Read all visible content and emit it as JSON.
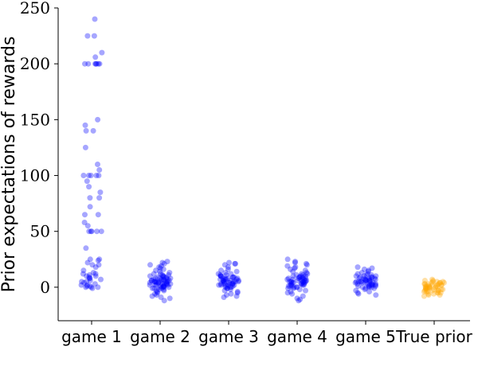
{
  "chart_data": {
    "type": "scatter",
    "subtype": "strip-plot",
    "title": "",
    "xlabel": "",
    "ylabel": "Prior expectations of rewards",
    "ylim": [
      -30,
      250
    ],
    "yticks": [
      0,
      50,
      100,
      150,
      200,
      250
    ],
    "grid": false,
    "legend": "none",
    "categories": [
      "game 1",
      "game 2",
      "game 3",
      "game 4",
      "game 5",
      "True prior"
    ],
    "series": [
      {
        "category": "game 1",
        "color": "#0000ff",
        "values": [
          240,
          225,
          225,
          210,
          206,
          200,
          200,
          200,
          200,
          200,
          200,
          200,
          150,
          145,
          140,
          140,
          125,
          110,
          105,
          100,
          100,
          100,
          100,
          100,
          95,
          90,
          85,
          80,
          80,
          72,
          65,
          65,
          58,
          55,
          50,
          50,
          50,
          50,
          50,
          35,
          25,
          25,
          24,
          22,
          20,
          20,
          18,
          15,
          13,
          12,
          12,
          11,
          10,
          10,
          9,
          8,
          8,
          7,
          6,
          5,
          5,
          4,
          3,
          2,
          2,
          1,
          1,
          0,
          0,
          0,
          -1
        ]
      },
      {
        "category": "game 2",
        "color": "#0000ff",
        "values": [
          23,
          22,
          21,
          20,
          19,
          18,
          17,
          16,
          15,
          14,
          13,
          12,
          12,
          11,
          11,
          10,
          10,
          10,
          9,
          9,
          9,
          8,
          8,
          8,
          8,
          7,
          7,
          7,
          7,
          6,
          6,
          6,
          6,
          6,
          5,
          5,
          5,
          5,
          5,
          5,
          4,
          4,
          4,
          4,
          4,
          3,
          3,
          3,
          3,
          3,
          2,
          2,
          2,
          2,
          1,
          1,
          1,
          1,
          0,
          0,
          0,
          0,
          -1,
          -1,
          -1,
          -2,
          -2,
          -3,
          -3,
          -4,
          -5,
          -6,
          -7,
          -8,
          -9,
          -10,
          -12
        ]
      },
      {
        "category": "game 3",
        "color": "#0000ff",
        "values": [
          22,
          21,
          21,
          20,
          18,
          16,
          15,
          14,
          13,
          12,
          12,
          11,
          11,
          10,
          10,
          10,
          9,
          9,
          9,
          8,
          8,
          8,
          8,
          7,
          7,
          7,
          7,
          6,
          6,
          6,
          6,
          5,
          5,
          5,
          5,
          5,
          4,
          4,
          4,
          4,
          3,
          3,
          3,
          3,
          2,
          2,
          2,
          2,
          1,
          1,
          1,
          0,
          0,
          0,
          -1,
          -1,
          -2,
          -3,
          -4,
          -5,
          -6,
          -7,
          -8,
          -9
        ]
      },
      {
        "category": "game 4",
        "color": "#0000ff",
        "values": [
          25,
          23,
          22,
          21,
          20,
          19,
          18,
          17,
          16,
          15,
          14,
          13,
          12,
          12,
          11,
          11,
          10,
          10,
          10,
          9,
          9,
          9,
          8,
          8,
          8,
          8,
          7,
          7,
          7,
          7,
          6,
          6,
          6,
          6,
          5,
          5,
          5,
          5,
          5,
          4,
          4,
          4,
          4,
          3,
          3,
          3,
          3,
          2,
          2,
          2,
          1,
          1,
          1,
          0,
          0,
          0,
          -1,
          -1,
          -2,
          -3,
          -4,
          -5,
          -6,
          -8,
          -10,
          -11,
          -12
        ]
      },
      {
        "category": "game 5",
        "color": "#0000ff",
        "values": [
          18,
          17,
          16,
          15,
          14,
          13,
          12,
          12,
          11,
          11,
          10,
          10,
          10,
          9,
          9,
          9,
          8,
          8,
          8,
          8,
          7,
          7,
          7,
          7,
          6,
          6,
          6,
          6,
          5,
          5,
          5,
          5,
          5,
          4,
          4,
          4,
          4,
          3,
          3,
          3,
          3,
          2,
          2,
          2,
          2,
          1,
          1,
          1,
          1,
          0,
          0,
          0,
          -1,
          -1,
          -2,
          -3,
          -4,
          -5,
          -6,
          -7
        ]
      },
      {
        "category": "True prior",
        "color": "#ffa500",
        "values": [
          7,
          6,
          6,
          5,
          5,
          5,
          4,
          4,
          4,
          4,
          3,
          3,
          3,
          3,
          2,
          2,
          2,
          2,
          1,
          1,
          1,
          1,
          0,
          0,
          0,
          0,
          0,
          -1,
          -1,
          -1,
          -1,
          -2,
          -2,
          -2,
          -2,
          -3,
          -3,
          -3,
          -3,
          -4,
          -4,
          -4,
          -5,
          -5,
          -5,
          -6,
          -6,
          -7,
          -7,
          -8
        ]
      }
    ]
  }
}
